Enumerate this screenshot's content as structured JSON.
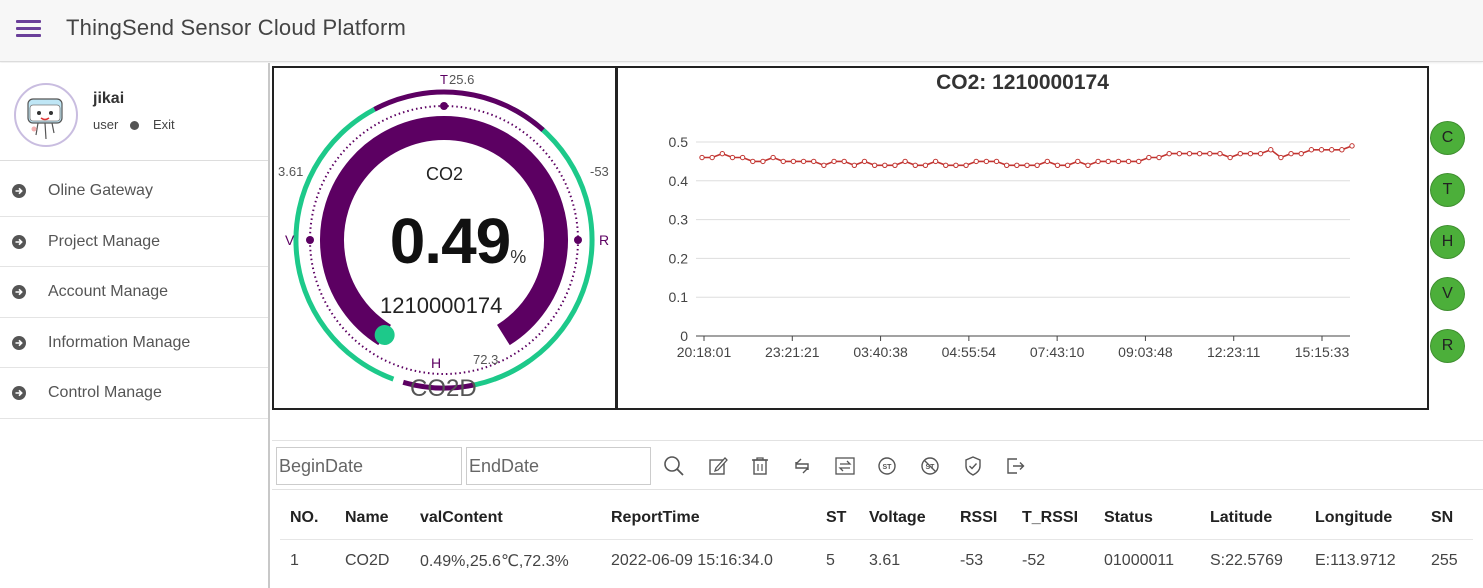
{
  "header": {
    "title": "ThingSend Sensor Cloud Platform"
  },
  "user": {
    "name": "jikai",
    "role": "user",
    "exit_label": "Exit"
  },
  "nav": {
    "items": [
      {
        "label": "Oline Gateway"
      },
      {
        "label": "Project Manage"
      },
      {
        "label": "Account Manage"
      },
      {
        "label": "Information Manage"
      },
      {
        "label": "Control Manage"
      }
    ]
  },
  "gauge": {
    "sensor_label": "CO2",
    "value": "0.49",
    "unit": "%",
    "serial": "1210000174",
    "device_name": "CO2D",
    "t_label": "T",
    "t_value": "25.6",
    "h_label": "H",
    "h_value": "72.3",
    "v_label": "V",
    "v_value": "3.61",
    "r_label": "R",
    "r_value": "-53",
    "level_fraction": 0.49,
    "colors": {
      "main": "#5c0062",
      "accent": "#1dc98a"
    }
  },
  "chart_data": {
    "type": "line",
    "title": "CO2: 1210000174",
    "x_tick_labels": [
      "20:18:01",
      "23:21:21",
      "03:40:38",
      "04:55:54",
      "07:43:10",
      "09:03:48",
      "12:23:11",
      "15:15:33"
    ],
    "y_ticks": [
      0,
      0.1,
      0.2,
      0.3,
      0.4,
      0.5
    ],
    "ylim": [
      0,
      0.5
    ],
    "grid": true,
    "series": [
      {
        "values": [
          0.46,
          0.46,
          0.47,
          0.46,
          0.46,
          0.45,
          0.45,
          0.46,
          0.45,
          0.45,
          0.45,
          0.45,
          0.44,
          0.45,
          0.45,
          0.44,
          0.45,
          0.44,
          0.44,
          0.44,
          0.45,
          0.44,
          0.44,
          0.45,
          0.44,
          0.44,
          0.44,
          0.45,
          0.45,
          0.45,
          0.44,
          0.44,
          0.44,
          0.44,
          0.45,
          0.44,
          0.44,
          0.45,
          0.44,
          0.45,
          0.45,
          0.45,
          0.45,
          0.45,
          0.46,
          0.46,
          0.47,
          0.47,
          0.47,
          0.47,
          0.47,
          0.47,
          0.46,
          0.47,
          0.47,
          0.47,
          0.48,
          0.46,
          0.47,
          0.47,
          0.48,
          0.48,
          0.48,
          0.48,
          0.49
        ],
        "color": "#c23531"
      }
    ]
  },
  "side_buttons": [
    "C",
    "T",
    "H",
    "V",
    "R"
  ],
  "filters": {
    "begin_placeholder": "BeginDate",
    "end_placeholder": "EndDate"
  },
  "toolbar_icons": [
    "search-icon",
    "edit-icon",
    "delete-icon",
    "refresh-icon",
    "transfer-icon",
    "st-icon",
    "st-off-icon",
    "shield-check-icon",
    "export-icon"
  ],
  "table": {
    "headers": [
      "NO.",
      "Name",
      "valContent",
      "ReportTime",
      "ST",
      "Voltage",
      "RSSI",
      "T_RSSI",
      "Status",
      "Latitude",
      "Longitude",
      "SN"
    ],
    "rows": [
      [
        "1",
        "CO2D",
        "0.49%,25.6℃,72.3%",
        "2022-06-09 15:16:34.0",
        "5",
        "3.61",
        "-53",
        "-52",
        "01000011",
        "S:22.5769",
        "E:113.9712",
        "255"
      ]
    ]
  }
}
